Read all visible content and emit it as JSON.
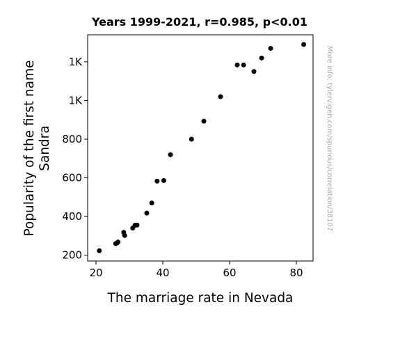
{
  "chart_data": {
    "type": "scatter",
    "title": "Years 1999-2021, r=0.985, p<0.01",
    "xlabel": "The marriage rate in Nevada",
    "ylabel_lines": [
      "Popularity of the first name",
      "Sandra"
    ],
    "credit": "More info: tylervigen.com/spurious/correlation/38107",
    "xlim": [
      17.5,
      85
    ],
    "ylim": [
      170,
      1340
    ],
    "x_ticks": [
      {
        "value": 20,
        "label": "20"
      },
      {
        "value": 40,
        "label": "40"
      },
      {
        "value": 60,
        "label": "60"
      },
      {
        "value": 80,
        "label": "80"
      }
    ],
    "y_ticks": [
      {
        "value": 200,
        "label": "200"
      },
      {
        "value": 400,
        "label": "400"
      },
      {
        "value": 600,
        "label": "600"
      },
      {
        "value": 800,
        "label": "800"
      },
      {
        "value": 1000,
        "label": "1K"
      },
      {
        "value": 1200,
        "label": "1K"
      }
    ],
    "marker_color": "#000000",
    "points": [
      {
        "x": 21.0,
        "y": 223
      },
      {
        "x": 25.9,
        "y": 260
      },
      {
        "x": 26.3,
        "y": 263
      },
      {
        "x": 26.6,
        "y": 268
      },
      {
        "x": 28.3,
        "y": 318
      },
      {
        "x": 28.6,
        "y": 302
      },
      {
        "x": 31.0,
        "y": 340
      },
      {
        "x": 31.7,
        "y": 355
      },
      {
        "x": 32.3,
        "y": 356
      },
      {
        "x": 35.2,
        "y": 418
      },
      {
        "x": 36.7,
        "y": 470
      },
      {
        "x": 38.3,
        "y": 583
      },
      {
        "x": 40.3,
        "y": 586
      },
      {
        "x": 42.3,
        "y": 720
      },
      {
        "x": 48.6,
        "y": 800
      },
      {
        "x": 52.3,
        "y": 893
      },
      {
        "x": 57.3,
        "y": 1020
      },
      {
        "x": 62.3,
        "y": 1184
      },
      {
        "x": 64.2,
        "y": 1184
      },
      {
        "x": 67.3,
        "y": 1150
      },
      {
        "x": 69.6,
        "y": 1220
      },
      {
        "x": 72.3,
        "y": 1270
      },
      {
        "x": 82.2,
        "y": 1290
      }
    ]
  }
}
